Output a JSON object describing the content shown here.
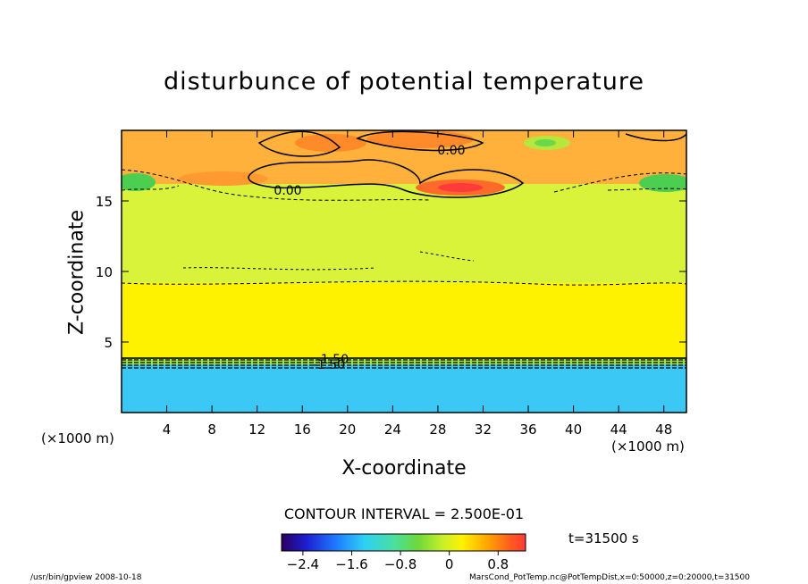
{
  "chart_data": {
    "type": "heatmap",
    "title": "disturbunce of potential temperature",
    "xlabel": "X-coordinate",
    "ylabel": "Z-coordinate",
    "x_unit": "(×1000 m)",
    "xlim": [
      0,
      50
    ],
    "ylim": [
      0,
      20
    ],
    "x_ticks": [
      4,
      8,
      12,
      16,
      20,
      24,
      28,
      32,
      36,
      40,
      44,
      48
    ],
    "y_ticks": [
      5,
      10,
      15
    ],
    "contour_interval": "CONTOUR INTERVAL = 2.500E-01",
    "contour_labels": [
      "0.00",
      "0.00",
      "-1.50",
      "-1.50"
    ],
    "colorbar": {
      "ticks": [
        "−2.4",
        "−1.6",
        "−0.8",
        "0",
        "0.8"
      ],
      "range": [
        -2.75,
        1.25
      ]
    },
    "layers": [
      {
        "z_from": 0.0,
        "z_to": 3.4,
        "value": -1.9,
        "color": "#3bc8f5"
      },
      {
        "z_from": 3.4,
        "z_to": 3.9,
        "value": -1.0,
        "color": "#9ee04a"
      },
      {
        "z_from": 3.9,
        "z_to": 9.2,
        "value": 0.0,
        "color": "#fff200"
      },
      {
        "z_from": 9.2,
        "z_to": 16.2,
        "value": -0.15,
        "color": "#d9f23a"
      },
      {
        "z_from": 16.2,
        "z_to": 20.0,
        "value": 0.4,
        "color": "#ffb13b"
      }
    ]
  },
  "annotations": {
    "time": "t=31500 s",
    "footer_left": "/usr/bin/gpview   2008-10-18",
    "footer_right": "MarsCond_PotTemp.nc@PotTempDist,x=0:50000,z=0:20000,t=31500"
  }
}
